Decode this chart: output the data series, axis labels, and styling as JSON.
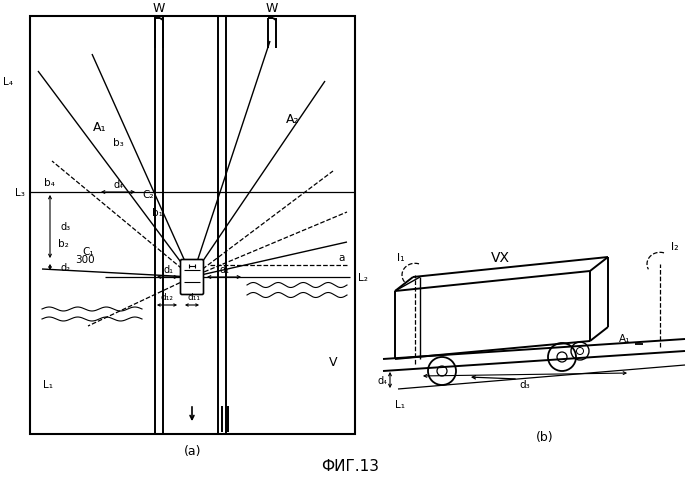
{
  "title": "ФИГ.13",
  "bg_color": "#ffffff",
  "line_color": "#000000",
  "fig_label_a": "(a)",
  "fig_label_b": "(b)"
}
